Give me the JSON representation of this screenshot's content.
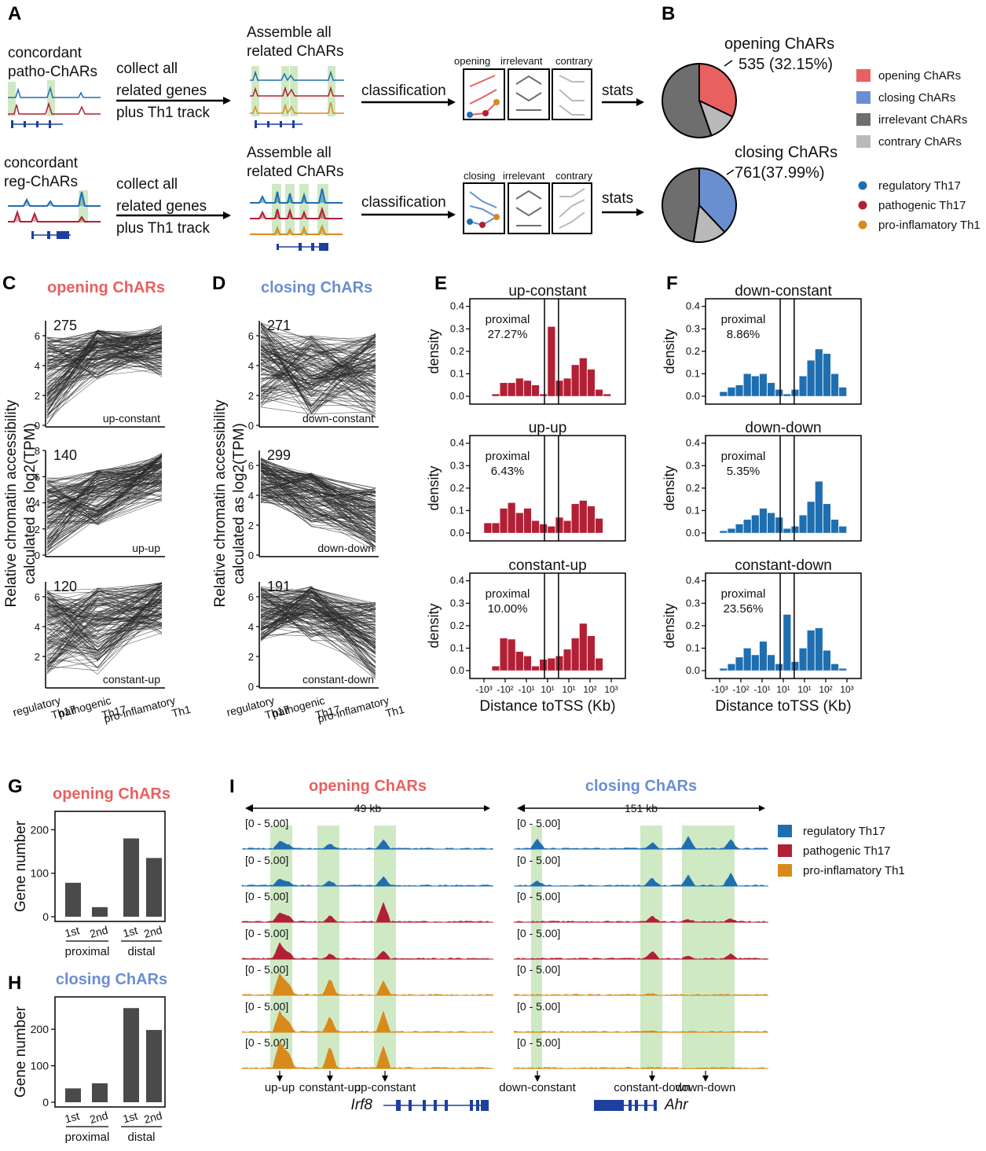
{
  "panel_letters": {
    "a": "A",
    "b": "B",
    "c": "C",
    "d": "D",
    "e": "E",
    "f": "F",
    "g": "G",
    "h": "H",
    "i": "I"
  },
  "colors": {
    "opening": "#e86060",
    "closing": "#6a8fd0",
    "irrelevant": "#6e6e6e",
    "contrary": "#b9b9b9",
    "reg": "#1f6fb0",
    "path": "#b22035",
    "th1": "#d98a1c",
    "hist_red": "#b22035",
    "hist_blue": "#1f6fb0",
    "bar": "#4a4a4a",
    "highlight": "#cfe9c4"
  },
  "panel_a": {
    "row1": {
      "source": "concordant\npatho-ChARs",
      "collect": "collect all\nrelated genes\nplus Th1 track",
      "assemble": "Assemble all\nrelated ChARs",
      "classification": "classification",
      "cats": [
        "opening",
        "irrelevant",
        "contrary"
      ],
      "stats": "stats"
    },
    "row2": {
      "source": "concordant\nreg-ChARs",
      "collect": "collect all\nrelated genes\nplus Th1 track",
      "assemble": "Assemble all\nrelated ChARs",
      "classification": "classification",
      "cats": [
        "closing",
        "irrelevant",
        "contrary"
      ],
      "stats": "stats"
    }
  },
  "panel_b": {
    "pie1": {
      "title": "opening ChARs",
      "label": "535 (32.15%)"
    },
    "pie2": {
      "title": "closing ChARs",
      "label": "761(37.99%)"
    },
    "legend": [
      "opening ChARs",
      "closing ChARs",
      "irrelevant ChARs",
      "contrary ChARs"
    ],
    "samples": [
      "regulatory Th17",
      "pathogenic Th17",
      "pro-inflamatory Th1"
    ]
  },
  "chart_data": [
    {
      "type": "pie",
      "title": "opening ChARs",
      "slices": [
        {
          "name": "opening ChARs",
          "value": 32.15
        },
        {
          "name": "contrary ChARs",
          "value": 12.5
        },
        {
          "name": "irrelevant ChARs",
          "value": 55.35
        }
      ],
      "annotation": "535 (32.15%)"
    },
    {
      "type": "pie",
      "title": "closing ChARs",
      "slices": [
        {
          "name": "closing ChARs",
          "value": 37.99
        },
        {
          "name": "contrary ChARs",
          "value": 14.5
        },
        {
          "name": "irrelevant ChARs",
          "value": 47.51
        }
      ],
      "annotation": "761(37.99%)"
    },
    {
      "type": "line",
      "panel": "C",
      "title": "opening ChARs",
      "ylabel": "Relative chromatin accessibility\ncalculated as log2(TPM)",
      "categories": [
        "regulatory\nTh17",
        "pathogenic\nTh17",
        "pro-inflamatory\nTh1"
      ],
      "facets": [
        {
          "name": "up-constant",
          "count": "275",
          "ylim": [
            0,
            7
          ],
          "yticks": [
            "0",
            "2",
            "4",
            "6"
          ],
          "pattern": [
            [
              0.0,
              6.0
            ],
            [
              3.0,
              6.4
            ],
            [
              3.2,
              6.7
            ]
          ]
        },
        {
          "name": "up-up",
          "count": "140",
          "ylim": [
            0,
            8
          ],
          "yticks": [
            "0",
            "2",
            "4",
            "6",
            "8"
          ],
          "pattern": [
            [
              0.0,
              5.9
            ],
            [
              2.0,
              6.5
            ],
            [
              4.0,
              7.8
            ]
          ]
        },
        {
          "name": "constant-up",
          "count": "120",
          "ylim": [
            0,
            7
          ],
          "yticks": [
            "2",
            "4",
            "6"
          ],
          "pattern": [
            [
              0.8,
              6.5
            ],
            [
              0.8,
              6.6
            ],
            [
              3.4,
              7.0
            ]
          ]
        }
      ]
    },
    {
      "type": "line",
      "panel": "D",
      "title": "closing ChARs",
      "ylabel": "Relative chromatin accessibility\ncalculated as log2(TPM)",
      "categories": [
        "regulatory\nTh17",
        "pathogenic\nTh17",
        "pro-inflamatory\nTh1"
      ],
      "facets": [
        {
          "name": "down-constant",
          "count": "271",
          "ylim": [
            0,
            7
          ],
          "yticks": [
            "0",
            "2",
            "4",
            "6"
          ],
          "pattern": [
            [
              1.2,
              7.0
            ],
            [
              0.3,
              6.0
            ],
            [
              0.2,
              6.2
            ]
          ]
        },
        {
          "name": "down-down",
          "count": "299",
          "ylim": [
            0,
            7
          ],
          "yticks": [
            "0",
            "2",
            "4",
            "6"
          ],
          "pattern": [
            [
              3.5,
              6.5
            ],
            [
              1.8,
              5.5
            ],
            [
              0.2,
              4.5
            ]
          ]
        },
        {
          "name": "constant-down",
          "count": "191",
          "ylim": [
            0,
            7
          ],
          "yticks": [
            "0",
            "2",
            "4",
            "6"
          ],
          "pattern": [
            [
              3.0,
              6.7
            ],
            [
              3.0,
              6.7
            ],
            [
              0.3,
              5.7
            ]
          ]
        }
      ]
    },
    {
      "type": "bar",
      "panel": "E",
      "xlabel": "Distance toTSS (Kb)",
      "ylabel": "density",
      "ylim": [
        0,
        0.42
      ],
      "yticks": [
        "0.0",
        "0.1",
        "0.2",
        "0.3",
        "0.4"
      ],
      "xticks": [
        "-10³",
        "-10²",
        "-10¹",
        "10¹",
        "10¹",
        "10²",
        "10³"
      ],
      "facets": [
        {
          "name": "up-constant",
          "note": "proximal\n27.27%",
          "values": [
            0.0,
            0.01,
            0.06,
            0.06,
            0.08,
            0.07,
            0.05,
            0.01,
            0.31,
            0.07,
            0.08,
            0.14,
            0.17,
            0.12,
            0.03,
            0.01
          ]
        },
        {
          "name": "up-up",
          "note": "proximal\n6.43%",
          "values": [
            0.045,
            0.045,
            0.11,
            0.135,
            0.09,
            0.11,
            0.055,
            0.04,
            0.03,
            0.07,
            0.055,
            0.13,
            0.145,
            0.12,
            0.065,
            0.0
          ]
        },
        {
          "name": "constant-up",
          "note": "proximal\n10.00%",
          "values": [
            0.0,
            0.02,
            0.145,
            0.14,
            0.085,
            0.065,
            0.02,
            0.05,
            0.055,
            0.065,
            0.095,
            0.145,
            0.21,
            0.155,
            0.055,
            0.0
          ]
        }
      ]
    },
    {
      "type": "bar",
      "panel": "F",
      "xlabel": "Distance toTSS (Kb)",
      "ylabel": "density",
      "ylim": [
        0,
        0.42
      ],
      "yticks": [
        "0.0",
        "0.1",
        "0.2",
        "0.3",
        "0.4"
      ],
      "xticks": [
        "-10³",
        "-10²",
        "-10¹",
        "10¹",
        "10¹",
        "10²",
        "10³"
      ],
      "facets": [
        {
          "name": "down-constant",
          "note": "proximal\n8.86%",
          "values": [
            0.02,
            0.04,
            0.05,
            0.1,
            0.09,
            0.1,
            0.06,
            0.03,
            0.01,
            0.03,
            0.09,
            0.16,
            0.21,
            0.19,
            0.1,
            0.04
          ]
        },
        {
          "name": "down-down",
          "note": "proximal\n5.35%",
          "values": [
            0.01,
            0.02,
            0.04,
            0.06,
            0.08,
            0.11,
            0.09,
            0.07,
            0.02,
            0.03,
            0.08,
            0.14,
            0.23,
            0.13,
            0.06,
            0.03
          ]
        },
        {
          "name": "constant-down",
          "note": "proximal\n23.56%",
          "values": [
            0.01,
            0.03,
            0.06,
            0.1,
            0.07,
            0.13,
            0.07,
            0.03,
            0.25,
            0.04,
            0.1,
            0.18,
            0.19,
            0.09,
            0.03,
            0.01
          ]
        }
      ]
    },
    {
      "type": "bar",
      "panel": "G",
      "title": "opening ChARs",
      "ylabel": "Gene number",
      "ylim": [
        0,
        235
      ],
      "yticks": [
        "0",
        "100",
        "200"
      ],
      "categories": [
        "1st",
        "2nd",
        "1st",
        "2nd"
      ],
      "groups": [
        "proximal",
        "distal"
      ],
      "values": [
        78,
        22,
        180,
        135
      ]
    },
    {
      "type": "bar",
      "panel": "H",
      "title": "closing ChARs",
      "ylabel": "Gene number",
      "ylim": [
        0,
        280
      ],
      "yticks": [
        "0",
        "100",
        "200"
      ],
      "categories": [
        "1st",
        "2nd",
        "1st",
        "2nd"
      ],
      "groups": [
        "proximal",
        "distal"
      ],
      "values": [
        38,
        52,
        258,
        198
      ]
    }
  ],
  "panel_i": {
    "opening": {
      "title": "opening ChARs",
      "span": "49 kb",
      "range": "[0 - 5.00]",
      "gene": "Irf8",
      "arrows": [
        "up-up",
        "constant-up",
        "up-constant"
      ]
    },
    "closing": {
      "title": "closing ChARs",
      "span": "151 kb",
      "range": "[0 - 5.00]",
      "gene": "Ahr",
      "arrows": [
        "down-constant",
        "constant-down",
        "down-down"
      ]
    },
    "legend": [
      "regulatory Th17",
      "pathogenic Th17",
      "pro-inflamatory Th1"
    ]
  }
}
